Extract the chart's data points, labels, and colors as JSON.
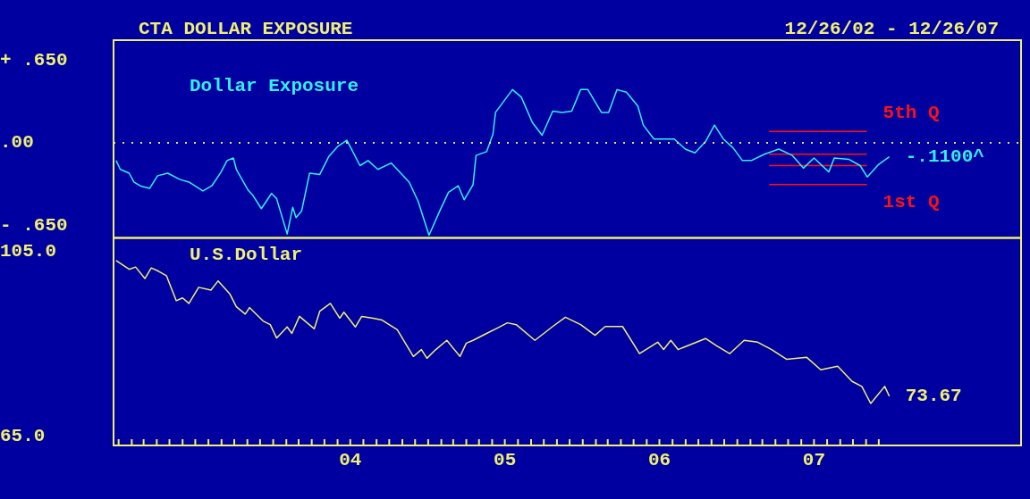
{
  "chart_data": [
    {
      "type": "line",
      "title": "CTA DOLLAR EXPOSURE",
      "subtitle": "12/26/02 - 12/26/07",
      "xlim": [
        "2002-12-20",
        "2008-11-01"
      ],
      "ylim": [
        -0.75,
        0.81
      ],
      "yticks": [
        {
          "value": 0.65,
          "label": "+ .650"
        },
        {
          "value": 0,
          "label": ".00"
        },
        {
          "value": -0.65,
          "label": "- .650"
        }
      ],
      "tick_labels": "y",
      "series": [
        {
          "name": "Dollar Exposure",
          "color": "#30f0f0",
          "x": [
            "2002-12-26",
            "2003-01-05",
            "2003-01-26",
            "2003-02-06",
            "2003-02-21",
            "2003-03-15",
            "2003-04-03",
            "2003-04-27",
            "2003-05-26",
            "2003-06-16",
            "2003-07-19",
            "2003-08-09",
            "2003-08-31",
            "2003-09-14",
            "2003-09-29",
            "2003-10-06",
            "2003-11-02",
            "2003-11-13",
            "2003-12-04",
            "2003-12-28",
            "2004-01-09",
            "2004-02-03",
            "2004-02-16",
            "2004-02-24",
            "2004-03-08",
            "2004-03-27",
            "2004-04-20",
            "2004-05-11",
            "2004-06-01",
            "2004-06-23",
            "2004-07-24",
            "2004-08-12",
            "2004-09-04",
            "2004-10-06",
            "2004-11-17",
            "2004-12-08",
            "2005-01-03",
            "2005-01-28",
            "2005-02-18",
            "2005-03-13",
            "2005-03-27",
            "2005-04-17",
            "2005-04-24",
            "2005-05-19",
            "2005-06-03",
            "2005-06-09",
            "2005-07-19",
            "2005-08-09",
            "2005-09-04",
            "2005-09-27",
            "2005-10-22",
            "2005-11-13",
            "2005-12-06",
            "2005-12-27",
            "2006-01-13",
            "2006-02-14",
            "2006-03-03",
            "2006-03-23",
            "2006-04-14",
            "2006-05-11",
            "2006-05-24",
            "2006-06-18",
            "2006-08-05",
            "2006-08-31",
            "2006-09-23",
            "2006-10-18",
            "2006-11-08",
            "2006-11-29",
            "2006-12-22",
            "2007-01-13",
            "2007-02-03",
            "2007-03-06",
            "2007-04-09",
            "2007-05-11",
            "2007-06-06",
            "2007-07-01",
            "2007-08-05",
            "2007-08-18",
            "2007-09-21",
            "2007-10-18",
            "2007-11-04",
            "2007-12-01",
            "2007-12-26"
          ],
          "values": [
            -0.14,
            -0.21,
            -0.24,
            -0.31,
            -0.34,
            -0.36,
            -0.26,
            -0.24,
            -0.29,
            -0.31,
            -0.38,
            -0.34,
            -0.23,
            -0.14,
            -0.12,
            -0.21,
            -0.37,
            -0.41,
            -0.52,
            -0.4,
            -0.44,
            -0.72,
            -0.51,
            -0.59,
            -0.54,
            -0.24,
            -0.25,
            -0.11,
            -0.03,
            0.02,
            -0.18,
            -0.14,
            -0.21,
            -0.16,
            -0.31,
            -0.46,
            -0.73,
            -0.54,
            -0.39,
            -0.34,
            -0.45,
            -0.33,
            -0.1,
            -0.07,
            0.07,
            0.24,
            0.42,
            0.36,
            0.16,
            0.06,
            0.25,
            0.24,
            0.25,
            0.42,
            0.42,
            0.24,
            0.24,
            0.42,
            0.4,
            0.29,
            0.14,
            0.03,
            0.03,
            -0.05,
            -0.08,
            0.01,
            0.14,
            0.03,
            -0.04,
            -0.14,
            -0.14,
            -0.09,
            -0.05,
            -0.1,
            -0.2,
            -0.12,
            -0.23,
            -0.12,
            -0.13,
            -0.18,
            -0.27,
            -0.17,
            -0.11
          ]
        },
        {
          "color": "#ff1010",
          "x": [
            "2007-03-17",
            "2007-11-03"
          ],
          "values": [
            0.09,
            0.09
          ]
        },
        {
          "color": "#ff1010",
          "x": [
            "2007-03-17",
            "2007-11-03"
          ],
          "values": [
            -0.09,
            -0.09
          ]
        },
        {
          "color": "#ff1010",
          "x": [
            "2007-03-17",
            "2007-11-03"
          ],
          "values": [
            -0.18,
            -0.18
          ]
        },
        {
          "color": "#ff1010",
          "x": [
            "2007-03-17",
            "2007-11-03"
          ],
          "values": [
            -0.33,
            -0.33
          ]
        }
      ],
      "ref_lines": [
        {
          "axis": "y",
          "value": 0,
          "color": "#e8e860",
          "line_style": "dotted"
        }
      ],
      "annotations": [
        {
          "text": "5th Q",
          "x": "2007-11-03",
          "y": 0.09
        },
        {
          "text": "1st Q",
          "x": "2007-11-03",
          "y": -0.33
        },
        {
          "text": "-.1100^",
          "x": "2007-12-26",
          "y": -0.11
        }
      ]
    },
    {
      "type": "line",
      "xlim": [
        "2002-12-20",
        "2008-11-01"
      ],
      "ylim": [
        63,
        108
      ],
      "yticks": [
        {
          "value": 105,
          "label": "105.0"
        },
        {
          "value": 65,
          "label": "65.0"
        }
      ],
      "xticks": [
        {
          "value": "2003-01-01",
          "label": null
        },
        {
          "value": "2003-02-01",
          "label": null
        },
        {
          "value": "2003-03-01",
          "label": null
        },
        {
          "value": "2003-04-01",
          "label": null
        },
        {
          "value": "2003-05-01",
          "label": null
        },
        {
          "value": "2003-06-01",
          "label": null
        },
        {
          "value": "2003-07-01",
          "label": null
        },
        {
          "value": "2003-08-01",
          "label": null
        },
        {
          "value": "2003-09-01",
          "label": null
        },
        {
          "value": "2003-10-01",
          "label": null
        },
        {
          "value": "2003-11-01",
          "label": null
        },
        {
          "value": "2003-12-01",
          "label": null
        },
        {
          "value": "2004-01-01",
          "label": null
        },
        {
          "value": "2004-02-01",
          "label": null
        },
        {
          "value": "2004-03-01",
          "label": null
        },
        {
          "value": "2004-04-01",
          "label": null
        },
        {
          "value": "2004-05-01",
          "label": null
        },
        {
          "value": "2004-06-01",
          "label": null
        },
        {
          "value": "2004-07-01",
          "label": "04"
        },
        {
          "value": "2004-08-01",
          "label": null
        },
        {
          "value": "2004-09-01",
          "label": null
        },
        {
          "value": "2004-10-01",
          "label": null
        },
        {
          "value": "2004-11-01",
          "label": null
        },
        {
          "value": "2004-12-01",
          "label": null
        },
        {
          "value": "2005-01-01",
          "label": null
        },
        {
          "value": "2005-02-01",
          "label": null
        },
        {
          "value": "2005-03-01",
          "label": null
        },
        {
          "value": "2005-04-01",
          "label": null
        },
        {
          "value": "2005-05-01",
          "label": null
        },
        {
          "value": "2005-06-01",
          "label": null
        },
        {
          "value": "2005-07-01",
          "label": "05"
        },
        {
          "value": "2005-08-01",
          "label": null
        },
        {
          "value": "2005-09-01",
          "label": null
        },
        {
          "value": "2005-10-01",
          "label": null
        },
        {
          "value": "2005-11-01",
          "label": null
        },
        {
          "value": "2005-12-01",
          "label": null
        },
        {
          "value": "2006-01-01",
          "label": null
        },
        {
          "value": "2006-02-01",
          "label": null
        },
        {
          "value": "2006-03-01",
          "label": null
        },
        {
          "value": "2006-04-01",
          "label": null
        },
        {
          "value": "2006-05-01",
          "label": null
        },
        {
          "value": "2006-06-01",
          "label": null
        },
        {
          "value": "2006-07-01",
          "label": "06"
        },
        {
          "value": "2006-08-01",
          "label": null
        },
        {
          "value": "2006-09-01",
          "label": null
        },
        {
          "value": "2006-10-01",
          "label": null
        },
        {
          "value": "2006-11-01",
          "label": null
        },
        {
          "value": "2006-12-01",
          "label": null
        },
        {
          "value": "2007-01-01",
          "label": null
        },
        {
          "value": "2007-02-01",
          "label": null
        },
        {
          "value": "2007-03-01",
          "label": null
        },
        {
          "value": "2007-04-01",
          "label": null
        },
        {
          "value": "2007-05-01",
          "label": null
        },
        {
          "value": "2007-06-01",
          "label": null
        },
        {
          "value": "2007-07-01",
          "label": "07"
        },
        {
          "value": "2007-08-01",
          "label": null
        },
        {
          "value": "2007-09-01",
          "label": null
        },
        {
          "value": "2007-10-01",
          "label": null
        },
        {
          "value": "2007-11-01",
          "label": null
        },
        {
          "value": "2007-12-01",
          "label": null
        }
      ],
      "series": [
        {
          "name": "U.S.Dollar",
          "color": "#f0f070",
          "x": [
            "2002-12-26",
            "2003-01-26",
            "2003-02-10",
            "2003-03-04",
            "2003-03-19",
            "2003-04-05",
            "2003-04-24",
            "2003-05-17",
            "2003-06-01",
            "2003-06-16",
            "2003-07-09",
            "2003-08-07",
            "2003-08-24",
            "2003-09-21",
            "2003-10-06",
            "2003-10-27",
            "2003-11-06",
            "2003-12-08",
            "2003-12-25",
            "2004-01-09",
            "2004-02-03",
            "2004-02-14",
            "2004-03-03",
            "2004-04-07",
            "2004-04-20",
            "2004-05-15",
            "2004-06-06",
            "2004-06-16",
            "2004-07-13",
            "2004-07-28",
            "2004-08-24",
            "2004-09-14",
            "2004-10-20",
            "2004-11-27",
            "2004-12-16",
            "2004-12-29",
            "2005-01-19",
            "2005-02-14",
            "2005-03-17",
            "2005-04-01",
            "2005-04-17",
            "2005-05-19",
            "2005-06-14",
            "2005-07-07",
            "2005-07-28",
            "2005-09-10",
            "2005-10-22",
            "2005-11-21",
            "2005-12-27",
            "2006-01-30",
            "2006-02-23",
            "2006-04-05",
            "2006-05-15",
            "2006-06-27",
            "2006-07-11",
            "2006-07-28",
            "2006-08-14",
            "2006-10-18",
            "2006-11-13",
            "2006-12-14",
            "2007-01-17",
            "2007-02-18",
            "2007-03-23",
            "2007-04-27",
            "2007-06-14",
            "2007-07-17",
            "2007-08-26",
            "2007-09-29",
            "2007-10-22",
            "2007-11-12",
            "2007-12-15",
            "2007-12-26"
          ],
          "values": [
            103.1,
            101.2,
            101.7,
            99.2,
            101.5,
            100.8,
            99.8,
            94.4,
            95.0,
            93.8,
            97.3,
            96.7,
            98.7,
            95.8,
            93.1,
            91.5,
            92.9,
            90.0,
            89.2,
            86.3,
            88.7,
            87.3,
            91.0,
            88.3,
            92.1,
            93.8,
            90.6,
            91.9,
            88.7,
            91.0,
            90.6,
            90.2,
            88.1,
            82.3,
            83.8,
            81.9,
            83.8,
            85.8,
            82.3,
            85.2,
            85.8,
            87.3,
            88.5,
            89.6,
            89.2,
            85.8,
            88.8,
            90.8,
            89.2,
            86.9,
            88.8,
            88.8,
            82.9,
            85.4,
            83.8,
            85.8,
            83.8,
            86.2,
            84.6,
            82.9,
            85.8,
            85.4,
            83.8,
            81.7,
            82.1,
            79.4,
            80.2,
            76.9,
            75.8,
            72.1,
            75.8,
            73.67
          ]
        }
      ],
      "annotations": [
        {
          "text": "73.67",
          "x": "2007-12-26",
          "y": 73.67
        }
      ]
    }
  ]
}
